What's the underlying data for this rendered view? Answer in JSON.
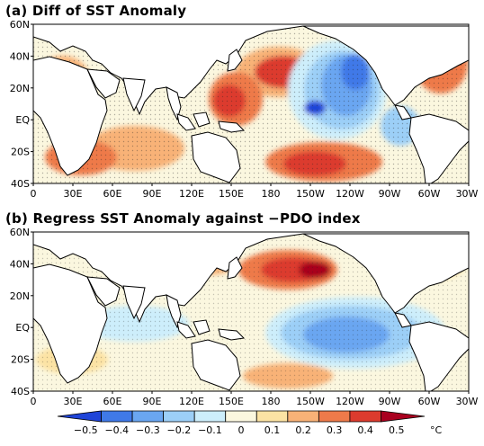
{
  "panels": [
    {
      "id": "a",
      "title": "(a) Diff of SST Anomaly",
      "lat_labels": [
        "60N",
        "40N",
        "20N",
        "EQ",
        "20S",
        "40S"
      ],
      "lon_labels": [
        "0",
        "30E",
        "60E",
        "90E",
        "120E",
        "150E",
        "180",
        "150W",
        "120W",
        "90W",
        "60W",
        "30W"
      ],
      "lon_range": [
        0,
        330
      ],
      "lat_range": [
        -40,
        60
      ]
    },
    {
      "id": "b",
      "title": "(b) Regress SST Anomaly against −PDO index",
      "lat_labels": [
        "60N",
        "40N",
        "20N",
        "EQ",
        "20S",
        "40S"
      ],
      "lon_labels": [
        "0",
        "30E",
        "60E",
        "90E",
        "120E",
        "150E",
        "180",
        "150W",
        "120W",
        "90W",
        "60W",
        "30W"
      ],
      "lon_range": [
        0,
        330
      ],
      "lat_range": [
        -40,
        60
      ]
    }
  ],
  "colorbar": {
    "levels": [
      "−0.5",
      "−0.4",
      "−0.3",
      "−0.2",
      "−0.1",
      "0",
      "0.1",
      "0.2",
      "0.3",
      "0.4",
      "0.5"
    ],
    "unit": "°C",
    "colors": [
      "#1f44d8",
      "#3f79e8",
      "#6aa6f1",
      "#9ccff7",
      "#cdeefb",
      "#fbf7df",
      "#fce3a4",
      "#f8b277",
      "#ee7a4a",
      "#dc3b2e",
      "#a9001f"
    ]
  },
  "palette": {
    "land": "#ffffff",
    "coast": "#000000",
    "stipple": "#222222"
  }
}
